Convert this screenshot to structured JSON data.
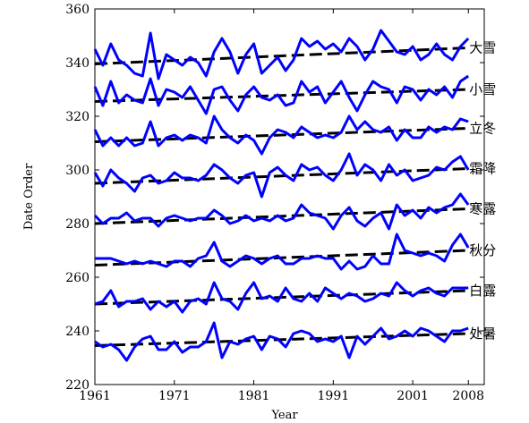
{
  "chart_data": {
    "type": "line",
    "xlabel": "Year",
    "ylabel": "Date Order",
    "xlim": [
      1961,
      2010
    ],
    "ylim": [
      220,
      360
    ],
    "x_ticks": [
      1961,
      1971,
      1981,
      1991,
      2001,
      2008
    ],
    "y_ticks": [
      220,
      240,
      260,
      280,
      300,
      320,
      340,
      360
    ],
    "grid": false,
    "years": [
      1961,
      1962,
      1963,
      1964,
      1965,
      1966,
      1967,
      1968,
      1969,
      1970,
      1971,
      1972,
      1973,
      1974,
      1975,
      1976,
      1977,
      1978,
      1979,
      1980,
      1981,
      1982,
      1983,
      1984,
      1985,
      1986,
      1987,
      1988,
      1989,
      1990,
      1991,
      1992,
      1993,
      1994,
      1995,
      1996,
      1997,
      1998,
      1999,
      2000,
      2001,
      2002,
      2003,
      2004,
      2005,
      2006,
      2007,
      2008
    ],
    "series": [
      {
        "name": "大雪",
        "values": [
          345,
          339,
          347,
          341,
          339,
          336,
          335,
          351,
          334,
          343,
          341,
          339,
          342,
          340,
          335,
          344,
          349,
          344,
          336,
          343,
          347,
          336,
          339,
          342,
          337,
          341,
          349,
          346,
          348,
          345,
          347,
          344,
          349,
          346,
          341,
          345,
          352,
          348,
          344,
          343,
          346,
          341,
          343,
          347,
          343,
          341,
          346,
          349
        ],
        "trend": [
          339.5,
          345.5
        ]
      },
      {
        "name": "小雪",
        "values": [
          331,
          324,
          333,
          325,
          328,
          326,
          325,
          334,
          324,
          330,
          329,
          327,
          331,
          326,
          321,
          330,
          331,
          326,
          322,
          328,
          331,
          327,
          326,
          328,
          324,
          325,
          333,
          329,
          331,
          325,
          329,
          333,
          327,
          322,
          328,
          333,
          331,
          330,
          325,
          331,
          330,
          326,
          330,
          328,
          331,
          327,
          333,
          335
        ],
        "trend": [
          325.5,
          330.0
        ]
      },
      {
        "name": "立冬",
        "values": [
          315,
          309,
          312,
          309,
          312,
          309,
          310,
          318,
          309,
          312,
          313,
          311,
          313,
          312,
          310,
          320,
          315,
          312,
          310,
          313,
          311,
          306,
          312,
          315,
          314,
          312,
          316,
          314,
          312,
          313,
          312,
          314,
          320,
          315,
          318,
          315,
          314,
          316,
          311,
          315,
          312,
          312,
          316,
          314,
          316,
          315,
          319,
          318
        ],
        "trend": [
          310.5,
          315.5
        ]
      },
      {
        "name": "霜降",
        "values": [
          299,
          294,
          300,
          297,
          295,
          292,
          297,
          298,
          295,
          296,
          299,
          297,
          297,
          296,
          298,
          302,
          300,
          297,
          295,
          298,
          299,
          290,
          299,
          301,
          298,
          296,
          302,
          300,
          301,
          298,
          296,
          300,
          306,
          298,
          302,
          300,
          296,
          302,
          298,
          300,
          296,
          297,
          298,
          301,
          300,
          303,
          305,
          300
        ],
        "trend": [
          295.0,
          300.5
        ]
      },
      {
        "name": "寒露",
        "values": [
          283,
          280,
          282,
          282,
          284,
          281,
          282,
          282,
          279,
          282,
          283,
          282,
          281,
          282,
          282,
          285,
          283,
          280,
          281,
          283,
          281,
          282,
          281,
          283,
          281,
          282,
          287,
          284,
          283,
          282,
          278,
          283,
          286,
          281,
          279,
          282,
          284,
          278,
          287,
          283,
          285,
          282,
          286,
          284,
          286,
          287,
          291,
          287
        ],
        "trend": [
          280.0,
          285.5
        ]
      },
      {
        "name": "秋分",
        "values": [
          267,
          267,
          267,
          266,
          265,
          266,
          265,
          266,
          265,
          264,
          266,
          266,
          264,
          267,
          268,
          273,
          266,
          264,
          266,
          268,
          267,
          265,
          267,
          268,
          265,
          265,
          267,
          267,
          268,
          267,
          267,
          263,
          266,
          263,
          264,
          268,
          265,
          265,
          276,
          270,
          269,
          268,
          269,
          268,
          266,
          272,
          276,
          271
        ],
        "trend": [
          264.5,
          270.0
        ]
      },
      {
        "name": "白露",
        "values": [
          250,
          251,
          255,
          249,
          251,
          251,
          252,
          248,
          251,
          249,
          251,
          247,
          251,
          252,
          250,
          258,
          252,
          251,
          248,
          254,
          258,
          252,
          253,
          251,
          256,
          252,
          251,
          254,
          251,
          256,
          254,
          252,
          254,
          253,
          251,
          252,
          254,
          253,
          258,
          255,
          253,
          255,
          256,
          254,
          253,
          256,
          256,
          256
        ],
        "trend": [
          250.0,
          255.0
        ]
      },
      {
        "name": "处暑",
        "values": [
          236,
          234,
          235,
          233,
          229,
          234,
          237,
          238,
          233,
          233,
          236,
          232,
          234,
          234,
          236,
          243,
          230,
          236,
          235,
          237,
          238,
          233,
          238,
          237,
          234,
          239,
          240,
          239,
          236,
          237,
          236,
          238,
          230,
          238,
          235,
          238,
          241,
          237,
          238,
          240,
          238,
          241,
          240,
          238,
          236,
          240,
          240,
          241
        ],
        "trend": [
          234.5,
          239.0
        ]
      }
    ]
  }
}
